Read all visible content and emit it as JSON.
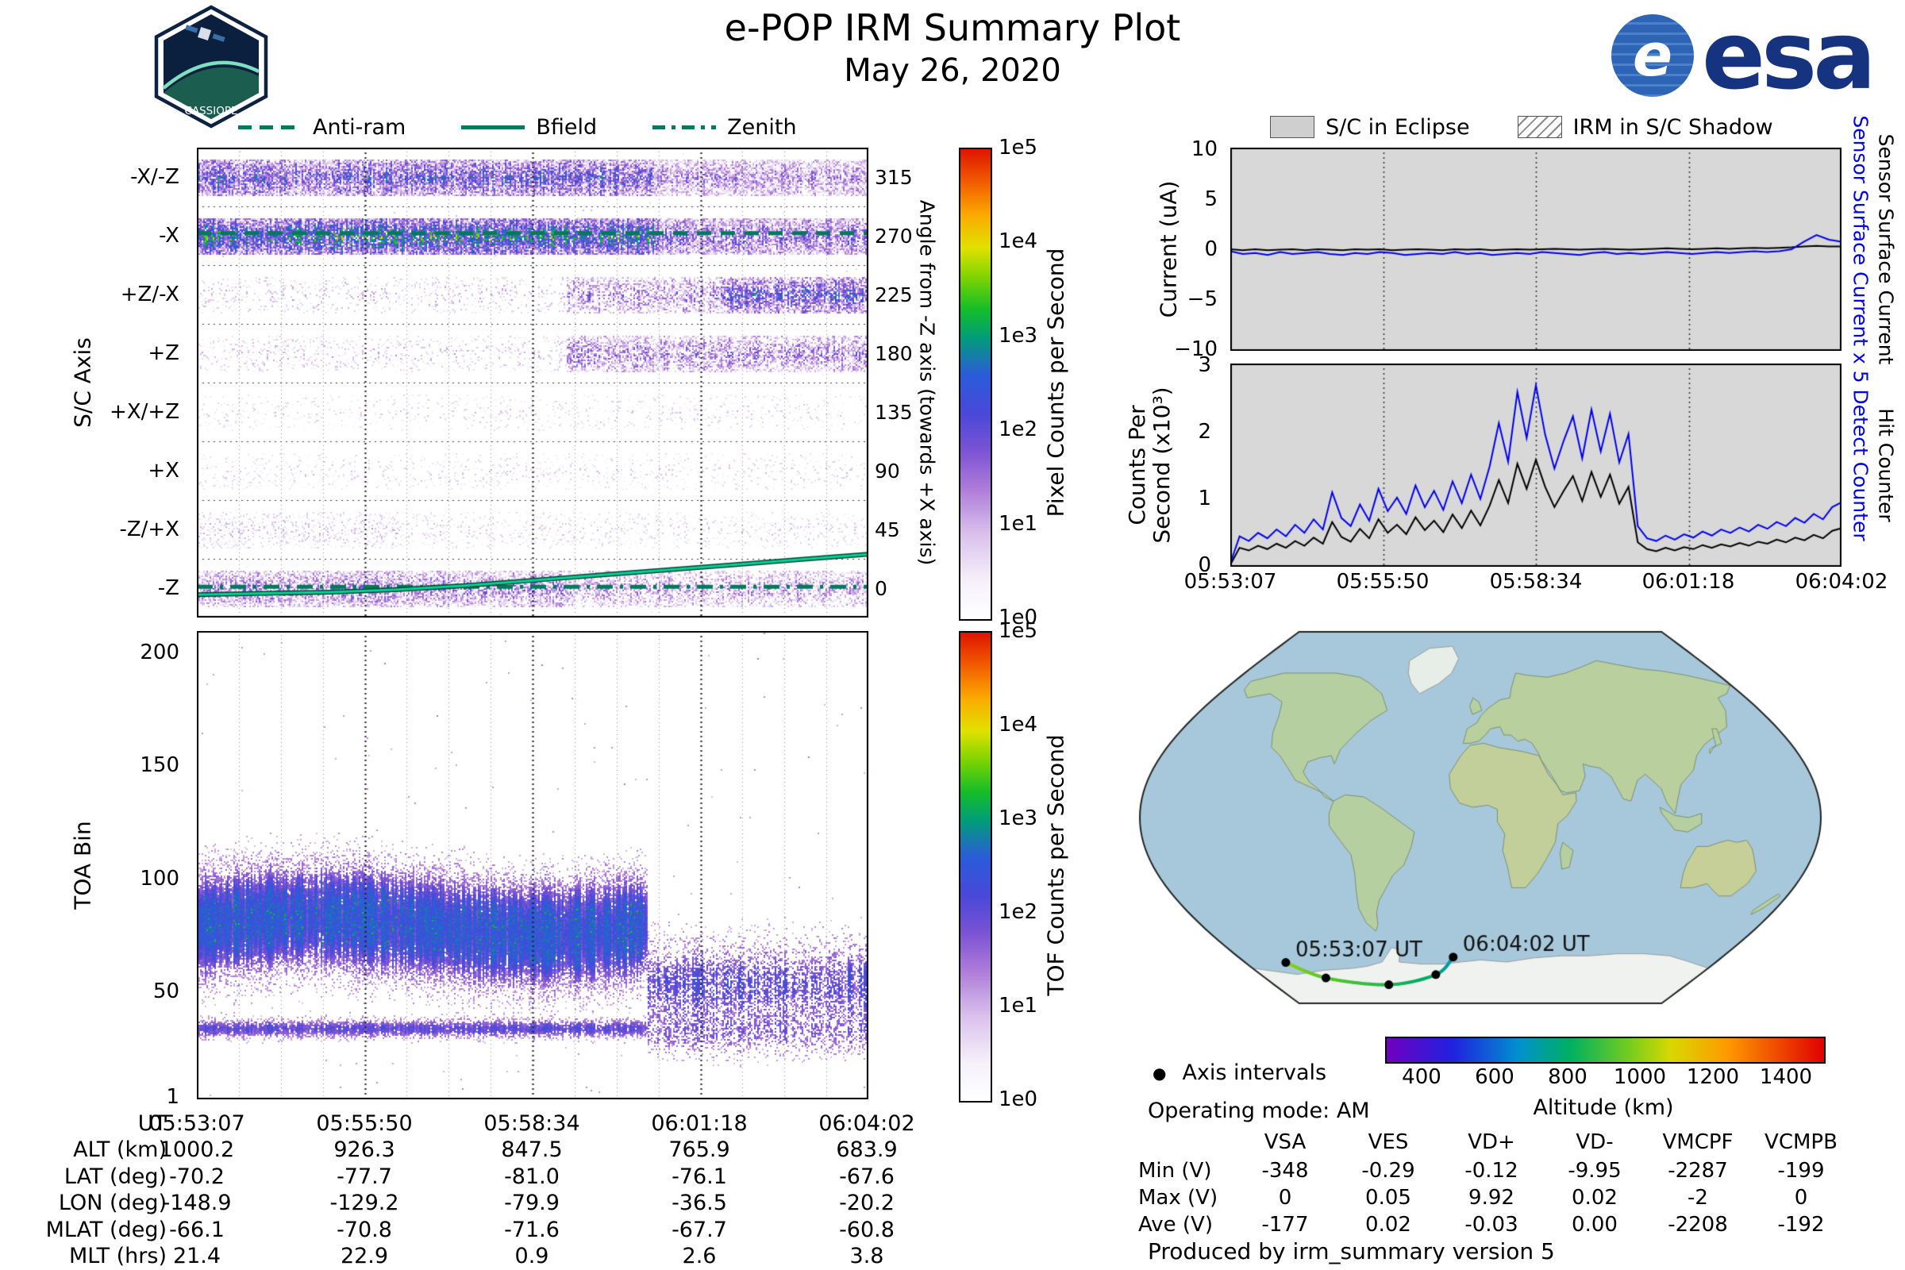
{
  "header": {
    "title": "e-POP IRM Summary Plot",
    "date": "May 26, 2020",
    "patch_text": "CASSIOPE",
    "esa_e": "e",
    "esa_text": "esa"
  },
  "spectro_legend": {
    "items": [
      {
        "label": "Anti-ram",
        "style": "dashed"
      },
      {
        "label": "Bfield",
        "style": "solid"
      },
      {
        "label": "Zenith",
        "style": "dashdot"
      }
    ],
    "line_color": "#00795c"
  },
  "right_legend": {
    "eclipse": "S/C in Eclipse",
    "shadow": "IRM in S/C Shadow"
  },
  "chart_data": [
    {
      "id": "sc_axis_spectrogram",
      "type": "heatmap",
      "ylabel": "S/C Axis",
      "ylabel_right": "Angle from -Z axis (towards +X axis)",
      "angle_ticks": [
        "315",
        "270",
        "225",
        "180",
        "135",
        "90",
        "45",
        "0"
      ],
      "x_ticks": [
        "05:53:07",
        "05:55:50",
        "05:58:34",
        "06:01:18",
        "06:04:02"
      ],
      "colorbar": {
        "label": "Pixel Counts per Second",
        "ticks": [
          "1e5",
          "1e4",
          "1e3",
          "1e2",
          "1e1",
          "1e0"
        ],
        "log_range": [
          0,
          5
        ]
      },
      "bands": [
        {
          "label": "-X/-Z",
          "angle": 315,
          "segments": [
            {
              "x0": 0,
              "x1": 0.68,
              "density": 0.92,
              "log_mean": 1.7,
              "log_spread": 0.9
            },
            {
              "x0": 0.68,
              "x1": 1.01,
              "density": 0.8,
              "log_mean": 1.1,
              "log_spread": 0.7
            }
          ]
        },
        {
          "label": "-X",
          "angle": 270,
          "segments": [
            {
              "x0": 0,
              "x1": 0.68,
              "density": 0.96,
              "log_mean": 2.4,
              "log_spread": 0.9
            },
            {
              "x0": 0.68,
              "x1": 1.01,
              "density": 0.85,
              "log_mean": 1.4,
              "log_spread": 0.8
            }
          ]
        },
        {
          "label": "+Z/-X",
          "angle": 225,
          "segments": [
            {
              "x0": 0,
              "x1": 0.55,
              "density": 0.18,
              "log_mean": 0.7,
              "log_spread": 0.5
            },
            {
              "x0": 0.55,
              "x1": 0.78,
              "density": 0.6,
              "log_mean": 1.1,
              "log_spread": 0.7
            },
            {
              "x0": 0.78,
              "x1": 1.01,
              "density": 0.82,
              "log_mean": 1.7,
              "log_spread": 0.9
            }
          ]
        },
        {
          "label": "+Z",
          "angle": 180,
          "segments": [
            {
              "x0": 0,
              "x1": 0.55,
              "density": 0.2,
              "log_mean": 0.6,
              "log_spread": 0.5
            },
            {
              "x0": 0.55,
              "x1": 1.01,
              "density": 0.65,
              "log_mean": 1.2,
              "log_spread": 0.7
            }
          ]
        },
        {
          "label": "+X/+Z",
          "angle": 135,
          "segments": [
            {
              "x0": 0,
              "x1": 1.01,
              "density": 0.12,
              "log_mean": 0.5,
              "log_spread": 0.4
            }
          ]
        },
        {
          "label": "+X",
          "angle": 90,
          "segments": [
            {
              "x0": 0,
              "x1": 1.01,
              "density": 0.14,
              "log_mean": 0.5,
              "log_spread": 0.4
            }
          ]
        },
        {
          "label": "-Z/+X",
          "angle": 45,
          "segments": [
            {
              "x0": 0,
              "x1": 0.3,
              "density": 0.3,
              "log_mean": 0.6,
              "log_spread": 0.5
            },
            {
              "x0": 0.3,
              "x1": 1.01,
              "density": 0.18,
              "log_mean": 0.5,
              "log_spread": 0.4
            }
          ]
        },
        {
          "label": "-Z",
          "angle": 0,
          "segments": [
            {
              "x0": 0,
              "x1": 0.55,
              "density": 0.75,
              "log_mean": 1.2,
              "log_spread": 0.7
            },
            {
              "x0": 0.55,
              "x1": 1.01,
              "density": 0.6,
              "log_mean": 1.0,
              "log_spread": 0.6
            }
          ]
        }
      ],
      "overlays": {
        "antiram_angle": 272,
        "zenith_angle": 1,
        "bfield_points": [
          [
            0,
            -5
          ],
          [
            0.1,
            -4
          ],
          [
            0.2,
            -3
          ],
          [
            0.3,
            -1
          ],
          [
            0.4,
            2
          ],
          [
            0.5,
            6
          ],
          [
            0.6,
            10
          ],
          [
            0.7,
            14
          ],
          [
            0.8,
            18
          ],
          [
            0.9,
            22
          ],
          [
            1,
            26
          ]
        ],
        "line_color": "#00795c",
        "bfield_color": "#00d49a"
      }
    },
    {
      "id": "toa_spectrogram",
      "type": "heatmap",
      "ylabel": "TOA Bin",
      "y_ticks": [
        "200",
        "150",
        "100",
        "50",
        "1"
      ],
      "ylim": [
        1,
        210
      ],
      "x_ticks": [
        "05:53:07",
        "05:55:50",
        "05:58:34",
        "06:01:18",
        "06:04:02"
      ],
      "colorbar": {
        "label": "TOF Counts per Second",
        "ticks": [
          "1e5",
          "1e4",
          "1e3",
          "1e2",
          "1e1",
          "1e0"
        ],
        "log_range": [
          0,
          5
        ]
      },
      "features": {
        "main_cloud_1": {
          "x0": 0,
          "x1": 0.67,
          "center_bin": 78,
          "sigma": 13,
          "amp": 1.5
        },
        "line_band_1": {
          "x0": 0,
          "x1": 0.67,
          "center_bin": 32,
          "sigma": 2.5,
          "amp": 0.55
        },
        "main_cloud_2": {
          "x0": 0.67,
          "x1": 1,
          "center_bin": 52,
          "sigma": 11,
          "amp": 0.7
        },
        "line_band_2": {
          "x0": 0.67,
          "x1": 1,
          "center_bin": 30,
          "sigma": 6,
          "amp": 0.4
        },
        "background_speckle": 0.015
      }
    },
    {
      "id": "sensor_current",
      "type": "line",
      "ylabel": "Current (uA)",
      "right_labels": [
        {
          "text": "Sensor Surface Current x 5",
          "color": "#0000ee"
        },
        {
          "text": "Sensor Surface Current",
          "color": "#000000"
        }
      ],
      "ylim": [
        -10.7,
        10.7
      ],
      "y_ticks": [
        "10",
        "5",
        "0",
        "−5",
        "−10"
      ],
      "x_ticks": [
        "05:53:07",
        "05:55:50",
        "05:58:34",
        "06:01:18",
        "06:04:02"
      ],
      "background": "#d8d8d8",
      "series": [
        {
          "name": "Sensor Surface Current x 5",
          "color": "#0000ee",
          "y": [
            -0.2,
            -0.5,
            -0.4,
            -0.6,
            -0.3,
            -0.5,
            -0.4,
            -0.3,
            -0.5,
            -0.6,
            -0.4,
            -0.5,
            -0.3,
            -0.4,
            -0.6,
            -0.5,
            -0.4,
            -0.5,
            -0.3,
            -0.5,
            -0.4,
            -0.6,
            -0.5,
            -0.4,
            -0.5,
            -0.3,
            -0.4,
            -0.5,
            -0.6,
            -0.4,
            -0.3,
            -0.5,
            -0.4,
            -0.5,
            -0.4,
            -0.3,
            -0.4,
            -0.5,
            -0.4,
            -0.3,
            -0.4,
            -0.3,
            -0.2,
            -0.3,
            -0.2,
            0.0,
            0.8,
            1.5,
            1.0,
            0.8
          ]
        },
        {
          "name": "Sensor Surface Current",
          "color": "#000000",
          "y": [
            0.0,
            -0.1,
            0.0,
            -0.1,
            -0.05,
            0.0,
            -0.1,
            0.0,
            -0.05,
            -0.1,
            0.0,
            -0.05,
            0.0,
            -0.1,
            -0.05,
            0.0,
            -0.05,
            -0.1,
            0.0,
            -0.05,
            0.0,
            -0.1,
            -0.05,
            0.0,
            -0.05,
            0.0,
            0.05,
            0.0,
            -0.05,
            0.0,
            0.05,
            0.0,
            -0.05,
            0.0,
            0.05,
            0.1,
            0.05,
            0.0,
            0.05,
            0.1,
            0.05,
            0.1,
            0.15,
            0.1,
            0.15,
            0.2,
            0.3,
            0.35,
            0.3,
            0.3
          ]
        }
      ]
    },
    {
      "id": "counters",
      "type": "line",
      "ylabel_lines": [
        "Counts Per",
        "Second (x10³)"
      ],
      "right_labels": [
        {
          "text": "Detect Counter",
          "color": "#0000ee"
        },
        {
          "text": "Hit Counter",
          "color": "#000000"
        }
      ],
      "ylim": [
        0,
        3
      ],
      "y_ticks": [
        "3",
        "2",
        "1",
        "0"
      ],
      "x_ticks": [
        "05:53:07",
        "05:55:50",
        "05:58:34",
        "06:01:18",
        "06:04:02"
      ],
      "background": "#d8d8d8",
      "series": [
        {
          "name": "Detect Counter",
          "color": "#0000ee",
          "y": [
            0.05,
            0.45,
            0.38,
            0.5,
            0.42,
            0.55,
            0.45,
            0.62,
            0.5,
            0.7,
            0.55,
            1.1,
            0.72,
            0.6,
            0.92,
            0.68,
            1.15,
            0.82,
            1.02,
            0.78,
            1.2,
            0.88,
            1.12,
            0.84,
            1.26,
            0.94,
            1.36,
            1.0,
            1.48,
            2.12,
            1.55,
            2.58,
            1.9,
            2.68,
            1.95,
            1.45,
            1.86,
            2.22,
            1.6,
            2.32,
            1.7,
            2.26,
            1.54,
            1.96,
            0.6,
            0.42,
            0.38,
            0.46,
            0.4,
            0.48,
            0.43,
            0.52,
            0.46,
            0.55,
            0.5,
            0.58,
            0.52,
            0.62,
            0.56,
            0.66,
            0.6,
            0.72,
            0.65,
            0.78,
            0.7,
            0.88,
            0.95
          ]
        },
        {
          "name": "Hit Counter",
          "color": "#000000",
          "y": [
            0.03,
            0.28,
            0.24,
            0.31,
            0.26,
            0.34,
            0.28,
            0.38,
            0.31,
            0.43,
            0.34,
            0.66,
            0.44,
            0.37,
            0.56,
            0.42,
            0.7,
            0.5,
            0.62,
            0.48,
            0.73,
            0.54,
            0.68,
            0.51,
            0.77,
            0.57,
            0.83,
            0.61,
            0.9,
            1.28,
            0.94,
            1.52,
            1.15,
            1.58,
            1.18,
            0.88,
            1.12,
            1.34,
            0.97,
            1.4,
            1.03,
            1.36,
            0.93,
            1.18,
            0.36,
            0.26,
            0.23,
            0.28,
            0.24,
            0.29,
            0.26,
            0.32,
            0.28,
            0.33,
            0.3,
            0.35,
            0.31,
            0.37,
            0.34,
            0.4,
            0.36,
            0.43,
            0.39,
            0.47,
            0.42,
            0.53,
            0.57
          ]
        }
      ]
    },
    {
      "id": "ground_track_map",
      "type": "map",
      "track": [
        {
          "ut": "05:53:07",
          "lat": -70.2,
          "lon": -148.9,
          "alt": 1000.2
        },
        {
          "ut": "05:55:50",
          "lat": -77.7,
          "lon": -129.2,
          "alt": 926.3
        },
        {
          "ut": "05:58:34",
          "lat": -81.0,
          "lon": -79.9,
          "alt": 847.5
        },
        {
          "ut": "06:01:18",
          "lat": -76.1,
          "lon": -36.5,
          "alt": 765.9
        },
        {
          "ut": "06:04:02",
          "lat": -67.6,
          "lon": -20.2,
          "alt": 683.9
        }
      ],
      "start_label": "05:53:07 UT",
      "end_label": "06:04:02 UT",
      "legend_label": "Axis intervals",
      "operating_mode": "Operating mode: AM",
      "colorbar": {
        "label": "Altitude (km)",
        "ticks": [
          "400",
          "600",
          "800",
          "1000",
          "1200",
          "1400"
        ],
        "range": [
          300,
          1500
        ]
      }
    }
  ],
  "bottom_table": {
    "rows": [
      {
        "label": "UT",
        "values": [
          "05:53:07",
          "05:55:50",
          "05:58:34",
          "06:01:18",
          "06:04:02"
        ]
      },
      {
        "label": "ALT (km)",
        "values": [
          "1000.2",
          "926.3",
          "847.5",
          "765.9",
          "683.9"
        ]
      },
      {
        "label": "LAT (deg)",
        "values": [
          "-70.2",
          "-77.7",
          "-81.0",
          "-76.1",
          "-67.6"
        ]
      },
      {
        "label": "LON (deg)",
        "values": [
          "-148.9",
          "-129.2",
          "-79.9",
          "-36.5",
          "-20.2"
        ]
      },
      {
        "label": "MLAT (deg)",
        "values": [
          "-66.1",
          "-70.8",
          "-71.6",
          "-67.7",
          "-60.8"
        ]
      },
      {
        "label": "MLT (hrs)",
        "values": [
          "21.4",
          "22.9",
          "0.9",
          "2.6",
          "3.8"
        ]
      }
    ]
  },
  "voltage_table": {
    "columns": [
      "",
      "VSA",
      "VES",
      "VD+",
      "VD-",
      "VMCPF",
      "VCMPB"
    ],
    "rows": [
      {
        "label": "Min (V)",
        "values": [
          "-348",
          "-0.29",
          "-0.12",
          "-9.95",
          "-2287",
          "-199"
        ]
      },
      {
        "label": "Max (V)",
        "values": [
          "0",
          "0.05",
          "9.92",
          "0.02",
          "-2",
          "0"
        ]
      },
      {
        "label": "Ave (V)",
        "values": [
          "-177",
          "0.02",
          "-0.03",
          "0.00",
          "-2208",
          "-192"
        ]
      }
    ]
  },
  "footer": "Produced by irm_summary version 5"
}
